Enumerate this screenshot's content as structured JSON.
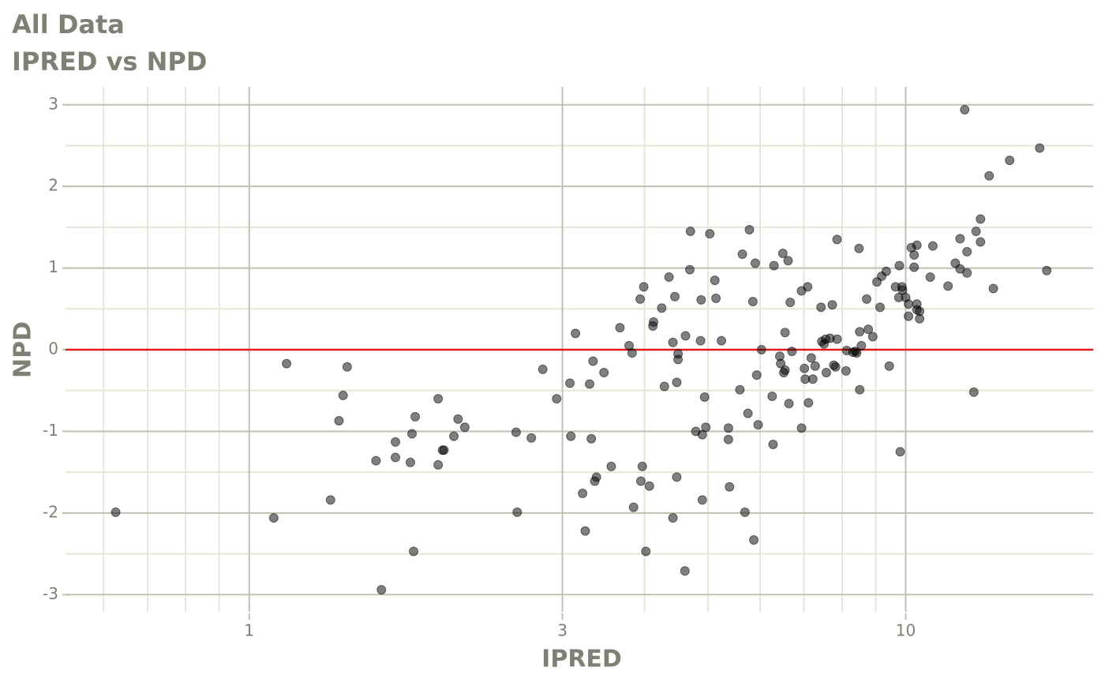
{
  "chart_data": {
    "type": "scatter",
    "title": "All Data",
    "subtitle": "IPRED vs NPD",
    "x_label": "IPRED",
    "y_label": "NPD",
    "xscale": "log",
    "xlim": [
      0.525,
      19.3
    ],
    "ylim": [
      -3.21,
      3.22
    ],
    "xticks": [
      1,
      3,
      10
    ],
    "yticks": [
      -3,
      -2,
      -1,
      0,
      1,
      2,
      3
    ],
    "xminor": [
      0.6,
      0.7,
      0.8,
      0.9,
      4,
      5,
      6,
      7,
      8,
      9
    ],
    "yminor": [
      -2.5,
      -1.5,
      -0.5,
      0.5,
      1.5,
      2.5
    ],
    "grid": true,
    "color": "#000000",
    "alpha": 0.5,
    "hline": {
      "value": 0,
      "color": "#e31a1c"
    },
    "x": [
      0.626,
      1.09,
      1.14,
      1.33,
      1.37,
      1.39,
      1.41,
      1.56,
      1.59,
      1.67,
      1.67,
      1.76,
      1.77,
      1.78,
      1.79,
      1.94,
      1.94,
      1.97,
      1.98,
      2.05,
      2.08,
      2.13,
      2.55,
      2.56,
      2.69,
      2.8,
      2.94,
      3.08,
      3.09,
      3.14,
      3.22,
      3.25,
      3.3,
      3.32,
      3.34,
      3.36,
      3.38,
      3.47,
      3.56,
      3.67,
      3.79,
      3.83,
      3.85,
      3.94,
      3.95,
      3.97,
      3.99,
      4.02,
      4.07,
      4.12,
      4.13,
      4.25,
      4.29,
      4.36,
      4.42,
      4.42,
      4.45,
      4.48,
      4.48,
      4.5,
      4.5,
      4.61,
      4.62,
      4.69,
      4.7,
      4.79,
      4.87,
      4.88,
      4.9,
      4.9,
      4.94,
      4.96,
      5.03,
      5.12,
      5.14,
      5.24,
      5.37,
      5.37,
      5.39,
      5.59,
      5.64,
      5.69,
      5.75,
      5.78,
      5.85,
      5.87,
      5.9,
      5.93,
      5.96,
      6.03,
      6.26,
      6.28,
      6.3,
      6.43,
      6.45,
      6.5,
      6.52,
      6.55,
      6.55,
      6.62,
      6.64,
      6.67,
      6.71,
      6.94,
      6.94,
      7.01,
      7.03,
      7.09,
      7.11,
      7.18,
      7.22,
      7.28,
      7.43,
      7.45,
      7.51,
      7.55,
      7.57,
      7.67,
      7.73,
      7.77,
      7.82,
      7.86,
      7.86,
      8.11,
      8.13,
      8.31,
      8.38,
      8.42,
      8.49,
      8.51,
      8.51,
      8.56,
      8.72,
      8.77,
      8.91,
      9.04,
      9.14,
      9.19,
      9.34,
      9.44,
      9.65,
      9.76,
      9.78,
      9.81,
      9.87,
      9.89,
      10.0,
      10.1,
      10.1,
      10.2,
      10.3,
      10.3,
      10.4,
      10.4,
      10.4,
      10.5,
      10.5,
      10.9,
      11.0,
      11.6,
      11.9,
      12.1,
      12.1,
      12.3,
      12.4,
      12.4,
      12.7,
      12.8,
      13.0,
      13.0,
      13.4,
      13.6,
      14.4,
      16.0,
      16.4
    ],
    "values": [
      -1.99,
      -2.06,
      -0.17,
      -1.84,
      -0.87,
      -0.56,
      -0.21,
      -1.36,
      -2.94,
      -1.13,
      -1.32,
      -1.38,
      -1.03,
      -2.47,
      -0.82,
      -0.6,
      -1.41,
      -1.23,
      -1.23,
      -1.06,
      -0.85,
      -0.95,
      -1.01,
      -1.99,
      -1.08,
      -0.24,
      -0.6,
      -0.41,
      -1.06,
      0.2,
      -1.76,
      -2.22,
      -0.42,
      -1.09,
      -0.14,
      -1.61,
      -1.56,
      -0.28,
      -1.43,
      0.27,
      0.05,
      -0.04,
      -1.93,
      0.62,
      -1.61,
      -1.43,
      0.77,
      -2.47,
      -1.67,
      0.29,
      0.34,
      0.51,
      -0.45,
      0.89,
      0.09,
      -2.06,
      0.65,
      -1.56,
      -0.4,
      -0.05,
      -0.12,
      -2.71,
      0.17,
      0.98,
      1.45,
      -1.0,
      0.11,
      0.61,
      -1.04,
      -1.84,
      -0.58,
      -0.95,
      1.42,
      0.85,
      0.63,
      0.11,
      -1.1,
      -0.96,
      -1.68,
      -0.49,
      1.17,
      -1.99,
      -0.78,
      1.47,
      0.59,
      -2.33,
      1.06,
      -0.31,
      -0.92,
      0.0,
      -0.57,
      -1.16,
      1.03,
      -0.08,
      -0.17,
      1.18,
      -0.28,
      -0.25,
      0.21,
      1.09,
      -0.66,
      0.58,
      -0.02,
      -0.96,
      0.72,
      -0.23,
      -0.36,
      0.77,
      -0.65,
      -0.1,
      -0.36,
      -0.2,
      0.52,
      0.1,
      0.07,
      0.13,
      -0.28,
      0.14,
      0.55,
      -0.19,
      -0.21,
      0.13,
      1.35,
      -0.26,
      -0.01,
      -0.03,
      -0.02,
      -0.04,
      1.24,
      -0.49,
      0.22,
      0.05,
      0.62,
      0.25,
      0.16,
      0.83,
      0.52,
      0.9,
      0.96,
      -0.2,
      0.77,
      0.64,
      1.03,
      -1.25,
      0.77,
      0.73,
      0.64,
      0.41,
      0.56,
      1.25,
      1.01,
      1.16,
      1.28,
      0.56,
      0.49,
      0.38,
      0.47,
      0.89,
      1.27,
      0.78,
      1.06,
      1.36,
      0.99,
      2.94,
      0.94,
      1.2,
      -0.52,
      1.45,
      1.32,
      1.6,
      2.13,
      0.75,
      2.32,
      2.47,
      0.97
    ]
  }
}
